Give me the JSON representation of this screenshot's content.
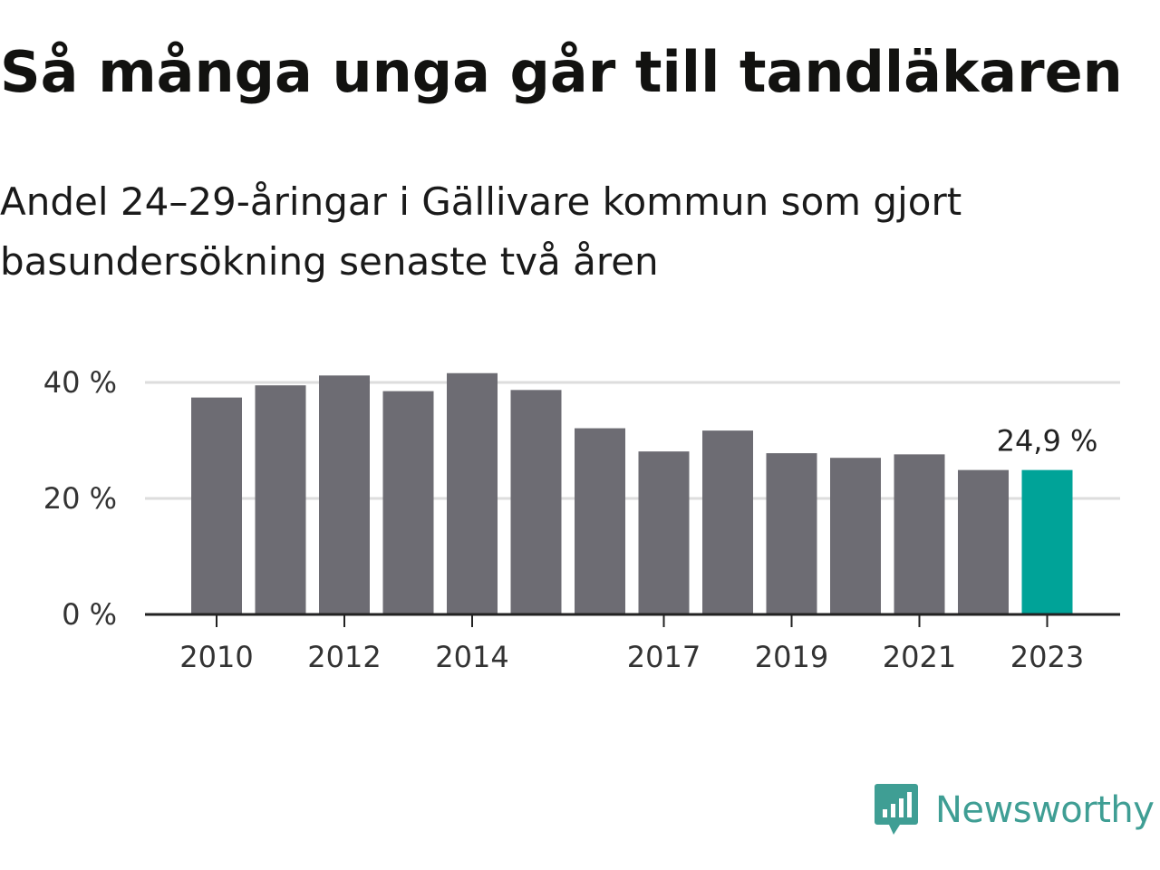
{
  "header": {
    "title": "Så många unga går till tandläkaren",
    "subtitle": "Andel 24–29-åringar i Gällivare kommun som gjort basundersökning senaste två åren"
  },
  "chart_data": {
    "type": "bar",
    "categories": [
      "2010",
      "2011",
      "2012",
      "2013",
      "2014",
      "2015",
      "2016",
      "2017",
      "2018",
      "2019",
      "2020",
      "2021",
      "2022",
      "2023"
    ],
    "x_tick_labels": [
      "2010",
      "2012",
      "2014",
      "2017",
      "2019",
      "2021",
      "2023"
    ],
    "values": [
      37.4,
      39.5,
      41.2,
      38.5,
      41.6,
      38.7,
      32.1,
      28.1,
      31.7,
      27.8,
      27.0,
      27.6,
      24.9,
      24.9
    ],
    "highlight_index": 13,
    "highlight_label": "24,9 %",
    "ylim": [
      0,
      40
    ],
    "y_tick_labels": [
      "0 %",
      "20 %",
      "40 %"
    ],
    "y_ticks": [
      0,
      20,
      40
    ],
    "colors": {
      "bar": "#6d6c73",
      "highlight": "#00a398",
      "grid": "#dddddd",
      "axis": "#222222"
    },
    "grid": true
  },
  "logo": {
    "text": "Newsworthy",
    "icon": "newsworthy-chart-icon",
    "color": "#3f9e94"
  }
}
